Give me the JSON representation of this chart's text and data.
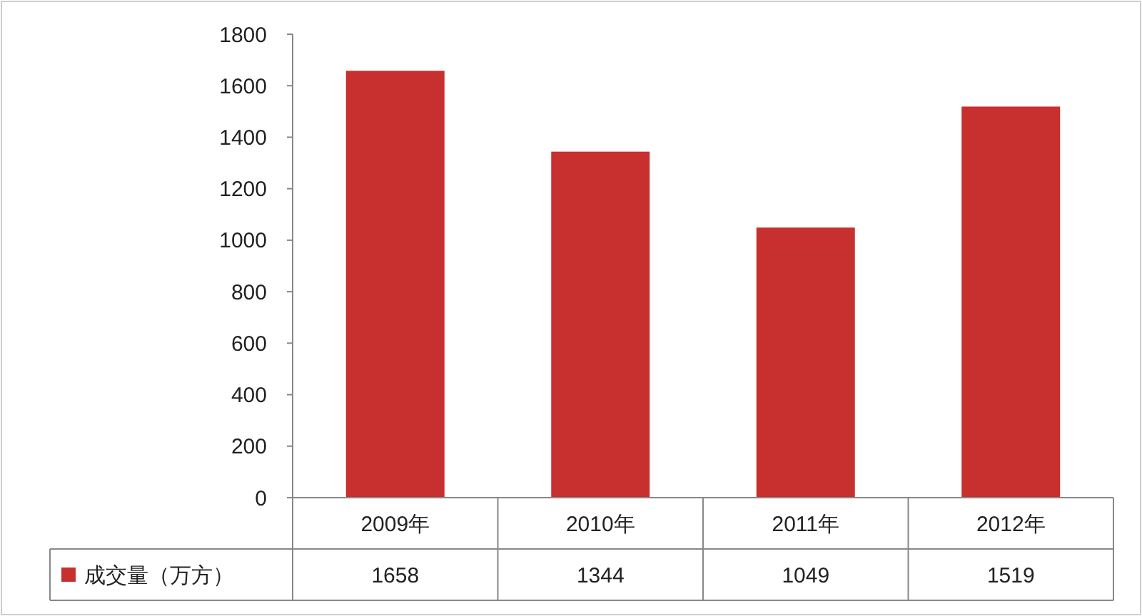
{
  "chart_data": {
    "type": "bar",
    "categories": [
      "2009年",
      "2010年",
      "2011年",
      "2012年"
    ],
    "series": [
      {
        "name": "成交量（万方）",
        "color": "#c8302f",
        "values": [
          1658,
          1344,
          1049,
          1519
        ]
      }
    ],
    "ylim": [
      0,
      1800
    ],
    "yticks": [
      0,
      200,
      400,
      600,
      800,
      1000,
      1200,
      1400,
      1600,
      1800
    ],
    "grid": false,
    "legend": "bottom left",
    "data_labels": true
  }
}
